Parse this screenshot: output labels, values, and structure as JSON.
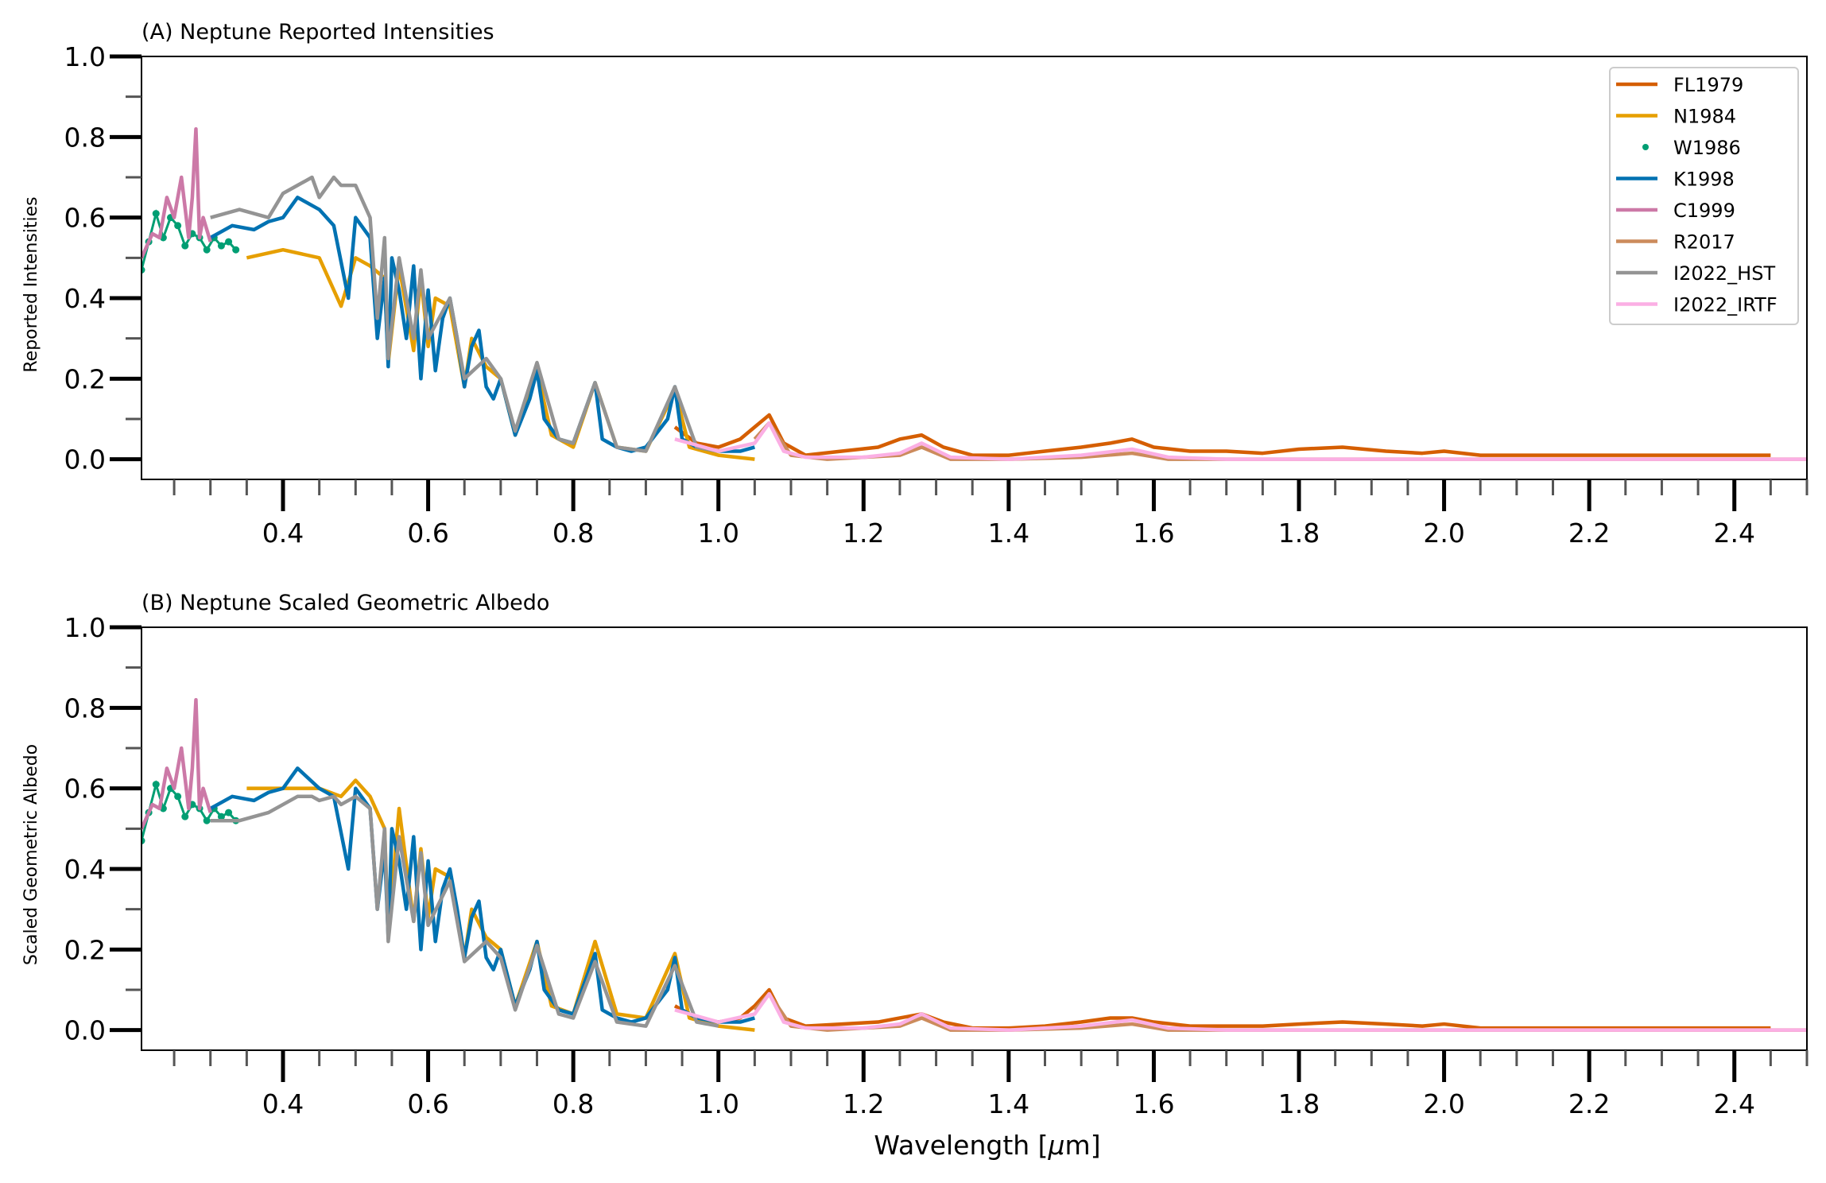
{
  "chart_data": [
    {
      "type": "line",
      "title": "(A) Neptune Reported Intensities",
      "xlabel": "",
      "ylabel": "Reported Intensities",
      "xlim": [
        0.205,
        2.5
      ],
      "ylim": [
        -0.05,
        1.0
      ],
      "yticks": [
        "0.0",
        "0.2",
        "0.4",
        "0.6",
        "0.8",
        "1.0"
      ],
      "xticks": [
        "0.4",
        "0.6",
        "0.8",
        "1.0",
        "1.2",
        "1.4",
        "1.6",
        "1.8",
        "2.0",
        "2.2",
        "2.4"
      ],
      "legend": "top-right",
      "series": [
        {
          "name": "FL1979",
          "color": "#d55e00",
          "style": "line",
          "x": [
            0.94,
            0.97,
            1.0,
            1.03,
            1.05,
            1.07,
            1.09,
            1.12,
            1.17,
            1.22,
            1.25,
            1.28,
            1.31,
            1.35,
            1.4,
            1.45,
            1.5,
            1.54,
            1.57,
            1.6,
            1.65,
            1.7,
            1.75,
            1.8,
            1.86,
            1.92,
            1.97,
            2.0,
            2.05,
            2.1,
            2.2,
            2.3,
            2.4,
            2.45
          ],
          "y": [
            0.08,
            0.04,
            0.03,
            0.05,
            0.08,
            0.11,
            0.04,
            0.01,
            0.02,
            0.03,
            0.05,
            0.06,
            0.03,
            0.01,
            0.01,
            0.02,
            0.03,
            0.04,
            0.05,
            0.03,
            0.02,
            0.02,
            0.015,
            0.025,
            0.03,
            0.02,
            0.015,
            0.02,
            0.01,
            0.01,
            0.01,
            0.01,
            0.01,
            0.01
          ]
        },
        {
          "name": "N1984",
          "color": "#e69f00",
          "style": "line",
          "x": [
            0.35,
            0.4,
            0.45,
            0.48,
            0.5,
            0.52,
            0.54,
            0.545,
            0.56,
            0.58,
            0.59,
            0.6,
            0.61,
            0.63,
            0.65,
            0.66,
            0.68,
            0.7,
            0.72,
            0.75,
            0.77,
            0.8,
            0.83,
            0.86,
            0.9,
            0.94,
            0.96,
            1.0,
            1.05
          ],
          "y": [
            0.5,
            0.52,
            0.5,
            0.38,
            0.5,
            0.48,
            0.45,
            0.24,
            0.48,
            0.27,
            0.45,
            0.28,
            0.4,
            0.38,
            0.18,
            0.3,
            0.23,
            0.2,
            0.06,
            0.22,
            0.06,
            0.03,
            0.19,
            0.03,
            0.02,
            0.17,
            0.03,
            0.01,
            0.0
          ]
        },
        {
          "name": "W1986",
          "color": "#009e73",
          "style": "dots",
          "x": [
            0.205,
            0.215,
            0.225,
            0.235,
            0.245,
            0.255,
            0.265,
            0.275,
            0.285,
            0.295,
            0.305,
            0.315,
            0.325,
            0.335
          ],
          "y": [
            0.47,
            0.54,
            0.61,
            0.55,
            0.6,
            0.58,
            0.53,
            0.56,
            0.55,
            0.52,
            0.55,
            0.53,
            0.54,
            0.52
          ]
        },
        {
          "name": "K1998",
          "color": "#0072b2",
          "style": "line",
          "x": [
            0.3,
            0.33,
            0.36,
            0.38,
            0.4,
            0.42,
            0.45,
            0.47,
            0.49,
            0.5,
            0.52,
            0.53,
            0.54,
            0.545,
            0.55,
            0.56,
            0.57,
            0.58,
            0.59,
            0.6,
            0.61,
            0.62,
            0.63,
            0.64,
            0.65,
            0.66,
            0.67,
            0.68,
            0.69,
            0.7,
            0.72,
            0.74,
            0.75,
            0.76,
            0.78,
            0.8,
            0.82,
            0.83,
            0.84,
            0.86,
            0.88,
            0.9,
            0.93,
            0.94,
            0.95,
            0.97,
            1.0,
            1.03,
            1.05
          ],
          "y": [
            0.55,
            0.58,
            0.57,
            0.59,
            0.6,
            0.65,
            0.62,
            0.58,
            0.4,
            0.6,
            0.55,
            0.3,
            0.45,
            0.23,
            0.5,
            0.42,
            0.3,
            0.48,
            0.2,
            0.42,
            0.22,
            0.35,
            0.4,
            0.3,
            0.18,
            0.28,
            0.32,
            0.18,
            0.15,
            0.2,
            0.06,
            0.15,
            0.22,
            0.1,
            0.05,
            0.04,
            0.14,
            0.19,
            0.05,
            0.03,
            0.02,
            0.03,
            0.1,
            0.18,
            0.05,
            0.03,
            0.02,
            0.02,
            0.03
          ]
        },
        {
          "name": "C1999",
          "color": "#cc79a7",
          "style": "line",
          "x": [
            0.205,
            0.22,
            0.23,
            0.24,
            0.25,
            0.26,
            0.27,
            0.275,
            0.28,
            0.285,
            0.29,
            0.3
          ],
          "y": [
            0.5,
            0.56,
            0.55,
            0.65,
            0.6,
            0.7,
            0.55,
            0.65,
            0.82,
            0.55,
            0.6,
            0.54
          ]
        },
        {
          "name": "R2017",
          "color": "#cc8b5c",
          "style": "line",
          "x": [
            1.05,
            1.07,
            1.1,
            1.15,
            1.2,
            1.25,
            1.28,
            1.32,
            1.4,
            1.5,
            1.57,
            1.62,
            1.7,
            1.8,
            1.9,
            2.0,
            2.1,
            2.2,
            2.3,
            2.4,
            2.5
          ],
          "y": [
            0.05,
            0.09,
            0.01,
            0.0,
            0.005,
            0.01,
            0.03,
            0.0,
            0.0,
            0.005,
            0.015,
            0.0,
            0.0,
            0.0,
            0.0,
            0.0,
            0.0,
            0.0,
            0.0,
            0.0,
            0.0
          ]
        },
        {
          "name": "I2022_HST",
          "color": "#949494",
          "style": "line",
          "x": [
            0.3,
            0.34,
            0.38,
            0.4,
            0.42,
            0.44,
            0.45,
            0.47,
            0.48,
            0.5,
            0.52,
            0.53,
            0.54,
            0.545,
            0.56,
            0.58,
            0.59,
            0.6,
            0.63,
            0.65,
            0.68,
            0.7,
            0.72,
            0.75,
            0.78,
            0.8,
            0.83,
            0.86,
            0.9,
            0.94,
            0.97,
            1.0
          ],
          "y": [
            0.6,
            0.62,
            0.6,
            0.66,
            0.68,
            0.7,
            0.65,
            0.7,
            0.68,
            0.68,
            0.6,
            0.35,
            0.55,
            0.25,
            0.5,
            0.3,
            0.47,
            0.3,
            0.4,
            0.2,
            0.25,
            0.2,
            0.07,
            0.24,
            0.05,
            0.04,
            0.19,
            0.03,
            0.02,
            0.18,
            0.03,
            0.02
          ]
        },
        {
          "name": "I2022_IRTF",
          "color": "#fbafe4",
          "style": "line",
          "x": [
            0.94,
            1.0,
            1.05,
            1.07,
            1.09,
            1.12,
            1.2,
            1.25,
            1.28,
            1.32,
            1.4,
            1.5,
            1.57,
            1.62,
            1.7,
            1.8,
            1.9,
            2.0,
            2.2,
            2.4,
            2.5
          ],
          "y": [
            0.05,
            0.02,
            0.04,
            0.09,
            0.02,
            0.005,
            0.005,
            0.015,
            0.04,
            0.005,
            0.0,
            0.01,
            0.025,
            0.005,
            0.0,
            0.0,
            0.0,
            0.0,
            0.0,
            0.0,
            0.0
          ]
        }
      ]
    },
    {
      "type": "line",
      "title": "(B) Neptune Scaled Geometric Albedo",
      "xlabel": "Wavelength [$\\mu$m]",
      "ylabel": "Scaled Geometric Albedo",
      "xlim": [
        0.205,
        2.5
      ],
      "ylim": [
        -0.05,
        1.0
      ],
      "yticks": [
        "0.0",
        "0.2",
        "0.4",
        "0.6",
        "0.8",
        "1.0"
      ],
      "xticks": [
        "0.4",
        "0.6",
        "0.8",
        "1.0",
        "1.2",
        "1.4",
        "1.6",
        "1.8",
        "2.0",
        "2.2",
        "2.4"
      ],
      "legend": "none",
      "series": [
        {
          "name": "FL1979",
          "color": "#d55e00",
          "style": "line",
          "x": [
            0.94,
            0.97,
            1.0,
            1.03,
            1.05,
            1.07,
            1.09,
            1.12,
            1.17,
            1.22,
            1.25,
            1.28,
            1.31,
            1.35,
            1.4,
            1.45,
            1.5,
            1.54,
            1.57,
            1.6,
            1.65,
            1.7,
            1.75,
            1.8,
            1.86,
            1.92,
            1.97,
            2.0,
            2.05,
            2.1,
            2.2,
            2.3,
            2.4,
            2.45
          ],
          "y": [
            0.06,
            0.03,
            0.02,
            0.03,
            0.06,
            0.1,
            0.03,
            0.01,
            0.015,
            0.02,
            0.03,
            0.04,
            0.02,
            0.005,
            0.005,
            0.01,
            0.02,
            0.03,
            0.03,
            0.02,
            0.01,
            0.01,
            0.01,
            0.015,
            0.02,
            0.015,
            0.01,
            0.015,
            0.005,
            0.005,
            0.005,
            0.005,
            0.005,
            0.005
          ]
        },
        {
          "name": "N1984",
          "color": "#e69f00",
          "style": "line",
          "x": [
            0.35,
            0.4,
            0.45,
            0.48,
            0.5,
            0.52,
            0.54,
            0.545,
            0.56,
            0.58,
            0.59,
            0.6,
            0.61,
            0.63,
            0.65,
            0.66,
            0.68,
            0.7,
            0.72,
            0.75,
            0.77,
            0.8,
            0.83,
            0.86,
            0.9,
            0.94,
            0.96,
            1.0,
            1.05
          ],
          "y": [
            0.6,
            0.6,
            0.6,
            0.58,
            0.62,
            0.58,
            0.5,
            0.24,
            0.55,
            0.27,
            0.45,
            0.28,
            0.4,
            0.38,
            0.18,
            0.3,
            0.23,
            0.2,
            0.06,
            0.22,
            0.06,
            0.04,
            0.22,
            0.04,
            0.03,
            0.19,
            0.03,
            0.01,
            0.0
          ]
        },
        {
          "name": "W1986",
          "color": "#009e73",
          "style": "dots",
          "x": [
            0.205,
            0.215,
            0.225,
            0.235,
            0.245,
            0.255,
            0.265,
            0.275,
            0.285,
            0.295,
            0.305,
            0.315,
            0.325,
            0.335
          ],
          "y": [
            0.47,
            0.54,
            0.61,
            0.55,
            0.6,
            0.58,
            0.53,
            0.56,
            0.55,
            0.52,
            0.55,
            0.53,
            0.54,
            0.52
          ]
        },
        {
          "name": "K1998",
          "color": "#0072b2",
          "style": "line",
          "x": [
            0.3,
            0.33,
            0.36,
            0.38,
            0.4,
            0.42,
            0.45,
            0.47,
            0.49,
            0.5,
            0.52,
            0.53,
            0.54,
            0.545,
            0.55,
            0.56,
            0.57,
            0.58,
            0.59,
            0.6,
            0.61,
            0.62,
            0.63,
            0.64,
            0.65,
            0.66,
            0.67,
            0.68,
            0.69,
            0.7,
            0.72,
            0.74,
            0.75,
            0.76,
            0.78,
            0.8,
            0.82,
            0.83,
            0.84,
            0.86,
            0.88,
            0.9,
            0.93,
            0.94,
            0.95,
            0.97,
            1.0,
            1.03,
            1.05
          ],
          "y": [
            0.55,
            0.58,
            0.57,
            0.59,
            0.6,
            0.65,
            0.6,
            0.58,
            0.4,
            0.6,
            0.55,
            0.3,
            0.45,
            0.23,
            0.5,
            0.42,
            0.3,
            0.48,
            0.2,
            0.42,
            0.22,
            0.35,
            0.4,
            0.3,
            0.18,
            0.28,
            0.32,
            0.18,
            0.15,
            0.2,
            0.06,
            0.15,
            0.22,
            0.1,
            0.05,
            0.04,
            0.14,
            0.19,
            0.05,
            0.03,
            0.02,
            0.03,
            0.1,
            0.18,
            0.05,
            0.03,
            0.02,
            0.02,
            0.03
          ]
        },
        {
          "name": "C1999",
          "color": "#cc79a7",
          "style": "line",
          "x": [
            0.205,
            0.22,
            0.23,
            0.24,
            0.25,
            0.26,
            0.27,
            0.275,
            0.28,
            0.285,
            0.29,
            0.3
          ],
          "y": [
            0.5,
            0.56,
            0.55,
            0.65,
            0.6,
            0.7,
            0.55,
            0.65,
            0.82,
            0.55,
            0.6,
            0.54
          ]
        },
        {
          "name": "R2017",
          "color": "#cc8b5c",
          "style": "line",
          "x": [
            1.05,
            1.07,
            1.1,
            1.15,
            1.2,
            1.25,
            1.28,
            1.32,
            1.4,
            1.5,
            1.57,
            1.62,
            1.7,
            1.8,
            1.9,
            2.0,
            2.1,
            2.2,
            2.3,
            2.4,
            2.5
          ],
          "y": [
            0.05,
            0.09,
            0.01,
            0.0,
            0.005,
            0.01,
            0.03,
            0.0,
            0.0,
            0.005,
            0.015,
            0.0,
            0.0,
            0.0,
            0.0,
            0.0,
            0.0,
            0.0,
            0.0,
            0.0,
            0.0
          ]
        },
        {
          "name": "I2022_HST",
          "color": "#949494",
          "style": "line",
          "x": [
            0.3,
            0.34,
            0.38,
            0.4,
            0.42,
            0.44,
            0.45,
            0.47,
            0.48,
            0.5,
            0.52,
            0.53,
            0.54,
            0.545,
            0.56,
            0.58,
            0.59,
            0.6,
            0.63,
            0.65,
            0.68,
            0.7,
            0.72,
            0.75,
            0.78,
            0.8,
            0.83,
            0.86,
            0.9,
            0.94,
            0.97,
            1.0
          ],
          "y": [
            0.52,
            0.52,
            0.54,
            0.56,
            0.58,
            0.58,
            0.57,
            0.58,
            0.56,
            0.58,
            0.55,
            0.3,
            0.5,
            0.22,
            0.48,
            0.27,
            0.44,
            0.26,
            0.37,
            0.17,
            0.22,
            0.18,
            0.05,
            0.21,
            0.04,
            0.03,
            0.17,
            0.02,
            0.01,
            0.16,
            0.02,
            0.01
          ]
        },
        {
          "name": "I2022_IRTF",
          "color": "#fbafe4",
          "style": "line",
          "x": [
            0.94,
            1.0,
            1.05,
            1.07,
            1.09,
            1.12,
            1.2,
            1.25,
            1.28,
            1.32,
            1.4,
            1.5,
            1.57,
            1.62,
            1.7,
            1.8,
            1.9,
            2.0,
            2.2,
            2.4,
            2.5
          ],
          "y": [
            0.05,
            0.02,
            0.04,
            0.09,
            0.02,
            0.005,
            0.005,
            0.015,
            0.04,
            0.005,
            0.0,
            0.01,
            0.025,
            0.005,
            0.0,
            0.0,
            0.0,
            0.0,
            0.0,
            0.0,
            0.0
          ]
        }
      ]
    }
  ]
}
